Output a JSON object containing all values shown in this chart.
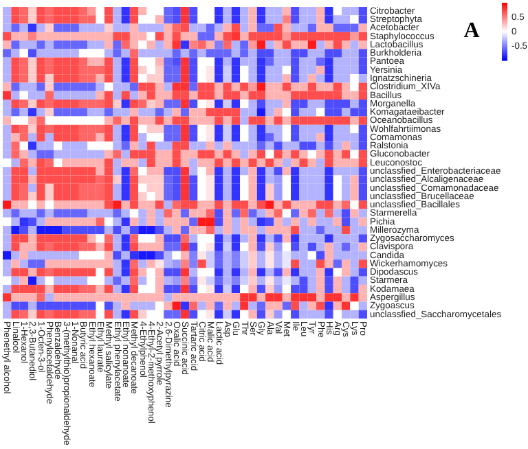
{
  "chart_data": {
    "type": "heatmap",
    "title": "A",
    "categories": [
      "Phenethyl alcohol",
      "Linalool",
      "1-Hexanol",
      "2,3-Butanediol",
      "1-Octen-3-ol",
      "Phenylacetaldehyde",
      "Benzaldehyde",
      "3-(methylthio)propionaldehyde",
      "1-Nonanal",
      "Butyric acid",
      "Ethyl hexanoate",
      "Ethyl laurate",
      "Methyl salicylate",
      "Ethyl phenylacetate",
      "Ethyl nonanoate",
      "Methyl decanoate",
      "4-Ethylphenol",
      "4-Ethyl-2-methoxyphenol",
      "2-Acetyl pyrrole",
      "2,6-Dimethylpyrazine",
      "Oxalic acid",
      "Succinic acid",
      "Tartaric acid",
      "Citric acid",
      "Malic acid",
      "Lactic acid",
      "Asp",
      "Glu",
      "Thr",
      "Ser",
      "Gly",
      "Ala",
      "Val",
      "Met",
      "Ile",
      "Leu",
      "Tyr",
      "Phe",
      "His",
      "Arg",
      "Cys",
      "Lys",
      "Pro"
    ],
    "y_categories": [
      "Citrobacter",
      "Streptophyta",
      "Acetobacter",
      "Staphylococcus",
      "Lactobacillus",
      "Burkholderia",
      "Pantoea",
      "Yersinia",
      "Ignatzschineria",
      "Clostridium_XIVa",
      "Bacillus",
      "Morganella",
      "Komagataeibacter",
      "Oceanobacillus",
      "Wohlfahrtiimonas",
      "Comamonas",
      "Ralstonia",
      "Gluconobacter",
      "Leuconostoc",
      "unclassfied_Enterobacteriaceae",
      "unclassfied_Alcaligenaceae",
      "unclassfied_Comamonadaceae",
      "unclassfied_Brucellaceae",
      "unclassfied_Bacillales",
      "Starmerella",
      "Pichia",
      "Millerozyma",
      "Zygosaccharomyces",
      "Clavispora",
      "Candida",
      "Wickerhamomyces",
      "Dipodascus",
      "Starmera",
      "Kodamaea",
      "Aspergillus",
      "Zygoascus",
      "unclassfied_Saccharomycetales"
    ],
    "cells": [
      [
        -0.3,
        0.7,
        0.6,
        0.2,
        0.7,
        0.6,
        0.7,
        0.7,
        0.7,
        0.6,
        0.4,
        0,
        0.7,
        -0.3,
        -0.8,
        0.7,
        0.3,
        0,
        0,
        -0.6,
        -0.7,
        0.8,
        -0.7,
        0,
        0,
        -0.8,
        -0.3,
        -0.8,
        -0.3,
        0.3,
        -0.8,
        -0.3,
        -0.3,
        0.3,
        -0.7,
        -0.3,
        -0.3,
        0.3,
        -0.8,
        0,
        -0.3,
        -0.3,
        -0.7
      ],
      [
        -0.3,
        0.7,
        0.6,
        0.2,
        0.7,
        0.6,
        0.7,
        0.7,
        0.7,
        0.6,
        0.6,
        0,
        0.7,
        -0.3,
        -0.8,
        0.7,
        0,
        0,
        0.3,
        -0.6,
        -0.7,
        0.8,
        -0.7,
        0,
        0,
        -0.8,
        -0.3,
        -0.8,
        -0.3,
        0.3,
        -0.8,
        -0.3,
        -0.3,
        0.5,
        -0.7,
        -0.3,
        -0.3,
        0.3,
        -0.8,
        -0.3,
        -0.3,
        0,
        -0.7
      ],
      [
        -0.3,
        -0.6,
        -0.3,
        -0.8,
        -0.3,
        0.2,
        -0.6,
        -0.6,
        -0.6,
        -0.3,
        -0.3,
        -0.3,
        0.2,
        -0.3,
        -0.3,
        0.3,
        -0.3,
        -0.3,
        -0.3,
        0.3,
        0.6,
        0.7,
        -0.3,
        -0.3,
        -0.6,
        -0.3,
        0.3,
        0.7,
        -0.3,
        0.3,
        -0.6,
        -0.6,
        0.7,
        0.3,
        -0.3,
        -0.3,
        -0.6,
        0.3,
        0.3,
        -0.6,
        -0.6,
        -0.6,
        0.3
      ],
      [
        0.7,
        0.3,
        0.3,
        0.5,
        0.3,
        0.3,
        0.3,
        0.3,
        0.3,
        0.3,
        0.3,
        0.3,
        0.3,
        0.7,
        0.7,
        0.3,
        0.3,
        0,
        0.7,
        0.3,
        0.7,
        0.3,
        0.3,
        -0.6,
        -0.6,
        0.3,
        0.7,
        0.8,
        0.3,
        0.7,
        0.7,
        0.7,
        0.7,
        0.4,
        0.7,
        0.7,
        0.7,
        0.7,
        0.7,
        0.7,
        0.7,
        0.4,
        0.7
      ],
      [
        0.3,
        -0.6,
        -0.3,
        -0.3,
        -0.6,
        -0.3,
        -0.6,
        -0.6,
        -0.6,
        -0.6,
        -0.3,
        -0.3,
        0.3,
        -0.6,
        0.6,
        0.3,
        0,
        0.3,
        -0.3,
        0.3,
        0.8,
        -0.8,
        0.5,
        0.6,
        0.3,
        -0.5,
        0.6,
        -0.3,
        -0.6,
        0.4,
        0.9,
        -0.3,
        0.3,
        0.7,
        0.3,
        0.3,
        0.9,
        -0.3,
        0.3,
        0.7,
        0.3,
        -0.3,
        0.3
      ],
      [
        -0.6,
        -0.3,
        0,
        -0.7,
        -0.3,
        -0.3,
        -0.3,
        -0.3,
        -0.3,
        0,
        0,
        0,
        -0.3,
        -0.6,
        -0.3,
        0.6,
        -0.3,
        -0.3,
        -0.3,
        -0.3,
        -0.6,
        -0.3,
        -0.6,
        -0.3,
        -0.6,
        -0.6,
        -0.6,
        -0.3,
        -0.6,
        -0.3,
        -0.7,
        -0.7,
        -0.3,
        -0.3,
        -0.7,
        -0.7,
        -0.3,
        -0.3,
        -0.7,
        -0.7,
        -0.3,
        -0.3,
        -0.7
      ],
      [
        -0.3,
        0.7,
        0.6,
        0.2,
        0.7,
        0.6,
        0.7,
        0.7,
        0.7,
        0.6,
        0.3,
        0.3,
        0.7,
        -0.3,
        -0.8,
        0.7,
        0,
        0,
        0.3,
        -0.6,
        -0.7,
        0.8,
        -0.7,
        0,
        0,
        -0.8,
        -0.3,
        -0.8,
        -0.3,
        -0.3,
        -0.8,
        -0.6,
        -0.3,
        -0.3,
        -0.7,
        -0.3,
        -0.3,
        -0.6,
        -0.8,
        -0.3,
        -0.3,
        -0.3,
        -0.7
      ],
      [
        -0.3,
        0.7,
        0.6,
        0.2,
        0.7,
        0.6,
        0.7,
        0.7,
        0.7,
        0.6,
        0.6,
        0.6,
        0.7,
        -0.3,
        -0.8,
        0.7,
        0.2,
        0,
        0.2,
        -0.6,
        -0.6,
        0.8,
        -0.7,
        0,
        0.1,
        -0.8,
        -0.2,
        -0.8,
        0,
        -0.3,
        -0.8,
        -0.3,
        -0.3,
        0,
        -0.7,
        -0.3,
        -0.3,
        0.3,
        -0.8,
        -0.3,
        -0.3,
        -0.3,
        -0.7
      ],
      [
        -0.3,
        0.7,
        0.6,
        0.2,
        0.7,
        0.2,
        0.7,
        0.7,
        0.7,
        0.6,
        0.6,
        0.3,
        0.7,
        -0.3,
        -0.8,
        0.7,
        0,
        0.2,
        0.2,
        -0.6,
        -0.6,
        0.8,
        -0.7,
        0,
        0.1,
        -0.8,
        -0.2,
        -0.8,
        0,
        -0.3,
        -0.8,
        -0.3,
        -0.3,
        0.3,
        -0.7,
        -0.3,
        0.3,
        -0.3,
        -0.8,
        -0.3,
        -0.3,
        0,
        -0.3
      ],
      [
        0.3,
        -0.6,
        -0.3,
        -0.3,
        -0.6,
        0.2,
        -0.6,
        -0.6,
        -0.6,
        -0.6,
        -0.6,
        -0.3,
        0,
        -0.3,
        -0.3,
        -0.6,
        0.7,
        0.7,
        0.3,
        -0.3,
        0.8,
        0.8,
        -0.6,
        0.7,
        0.7,
        0.3,
        0.7,
        0.3,
        0.7,
        0.4,
        0.9,
        0.3,
        0.3,
        0.7,
        0.3,
        0.3,
        0.7,
        0.3,
        0.3,
        0.7,
        0.3,
        0,
        0.7
      ],
      [
        0.8,
        -0.3,
        0,
        -0.3,
        -0.3,
        0.6,
        -0.3,
        -0.3,
        -0.3,
        -0.3,
        -0.3,
        0.3,
        0.7,
        -0.3,
        0.7,
        -0.3,
        0.3,
        0.7,
        0.3,
        0.3,
        0.7,
        0.7,
        0.3,
        0.7,
        0.7,
        0.3,
        0.7,
        0.7,
        0.3,
        0.7,
        0.7,
        0.3,
        0.3,
        0.3,
        0.7,
        0.7,
        0.7,
        0.7,
        0.7,
        0.7,
        0.3,
        0.3,
        0.7
      ],
      [
        -0.3,
        0.7,
        0.6,
        0.2,
        0.7,
        0.6,
        0.7,
        0.7,
        0.7,
        0.6,
        0.6,
        0.6,
        0.7,
        0.2,
        -0.8,
        0.7,
        0.6,
        0.2,
        0.3,
        -0.6,
        -0.6,
        0.8,
        -0.7,
        0,
        0.1,
        -0.8,
        -0.2,
        -0.8,
        0,
        -0.3,
        -0.7,
        -0.3,
        -0.3,
        0.3,
        -0.7,
        -0.7,
        -0.3,
        -0.3,
        -0.7,
        -0.7,
        -0.7,
        -0.3,
        -0.7
      ],
      [
        -0.3,
        -0.6,
        -0.3,
        -0.8,
        -0.3,
        0.2,
        -0.6,
        -0.6,
        -0.6,
        -0.6,
        -0.3,
        -0.3,
        -0.6,
        -0.3,
        -0.3,
        0.3,
        -0.3,
        -0.3,
        -0.6,
        -0.3,
        0.3,
        -0.6,
        0.3,
        0.3,
        0.7,
        0.7,
        0.7,
        0.7,
        -0.3,
        -0.3,
        -0.9,
        -0.3,
        0.3,
        0,
        -0.7,
        -0.3,
        -0.3,
        0,
        -0.7,
        -0.7,
        -0.3,
        -0.7,
        -0.7
      ],
      [
        0.3,
        0,
        0,
        0.3,
        0.6,
        0,
        0,
        0,
        0,
        0,
        0,
        0,
        0.3,
        0.6,
        0.3,
        0.7,
        0.3,
        0.3,
        0.7,
        0.3,
        0.7,
        0.7,
        0.3,
        0.3,
        0.3,
        0.7,
        0.3,
        0.7,
        -0.3,
        0.7,
        0.7,
        0.3,
        0.7,
        0.3,
        0.7,
        0.7,
        0.7,
        0.7,
        0.7,
        0.7,
        0.7,
        0.3,
        0.7
      ],
      [
        -0.3,
        0.7,
        0.6,
        0.2,
        0.7,
        0.6,
        0.7,
        0.7,
        0.7,
        0.6,
        0.6,
        0.6,
        0.7,
        -0.3,
        -0.8,
        0.7,
        0,
        0.2,
        0.2,
        -0.6,
        -0.6,
        0.8,
        -0.7,
        0,
        0.1,
        -0.8,
        -0.2,
        -0.8,
        0,
        -0.3,
        -0.8,
        -0.3,
        -0.3,
        0,
        -0.7,
        -0.3,
        -0.3,
        -0.3,
        -0.8,
        -0.3,
        -0.3,
        0,
        -0.7
      ],
      [
        -0.3,
        0.3,
        0.6,
        -0.3,
        0.7,
        -0.3,
        0.7,
        0.7,
        0.7,
        0.6,
        0.6,
        0.3,
        0.7,
        -0.3,
        -0.8,
        0.7,
        -0.3,
        0,
        0,
        -0.6,
        -0.6,
        0.8,
        -0.7,
        0,
        0.1,
        -0.8,
        -0.2,
        -0.8,
        0,
        -0.3,
        -0.8,
        -0.6,
        -0.3,
        0,
        -0.7,
        -0.3,
        -0.3,
        0.3,
        -0.8,
        -0.3,
        -0.3,
        -0.3,
        -0.7
      ],
      [
        -0.3,
        0.6,
        0,
        -0.8,
        -0.3,
        -0.3,
        0,
        -0.3,
        -0.3,
        -0.3,
        0,
        0,
        0,
        -0.3,
        -0.6,
        0.3,
        -0.3,
        0.7,
        -0.3,
        -0.3,
        0.7,
        0.7,
        -0.3,
        -0.3,
        0.3,
        -0.3,
        0.3,
        -0.3,
        -0.3,
        -0.3,
        -0.6,
        -0.3,
        -0.7,
        -0.3,
        -0.3,
        -0.7,
        -0.7,
        -0.3,
        -0.7,
        -0.3,
        0.3,
        -0.3,
        -0.7
      ],
      [
        -0.3,
        0.6,
        0.3,
        -0.3,
        -0.6,
        -0.6,
        -0.3,
        -0.3,
        -0.3,
        -0.3,
        -0.3,
        -0.3,
        0.3,
        0.6,
        -0.3,
        0.7,
        0.7,
        0.7,
        0.3,
        0.3,
        0.7,
        0.3,
        0.3,
        0.7,
        0.7,
        0.3,
        0.7,
        0.3,
        -0.3,
        0.3,
        0.7,
        0,
        0.7,
        0.3,
        0.7,
        0.3,
        0,
        0.3,
        0.7,
        0.3,
        0.7,
        0,
        0.7
      ],
      [
        0,
        -0.3,
        0.6,
        0.3,
        0.7,
        0.6,
        0,
        0.3,
        0.3,
        0.3,
        0.3,
        0.3,
        0.7,
        -0.3,
        0.3,
        0.3,
        -0.3,
        0.7,
        0.3,
        0.3,
        0.7,
        0.3,
        -0.3,
        0.3,
        0.3,
        0.7,
        0.3,
        0.7,
        0.3,
        0.7,
        0.3,
        0.7,
        0.3,
        -0.3,
        0.3,
        0.7,
        0.3,
        -0.3,
        0.7,
        0.3,
        0.3,
        0.3,
        0.7
      ],
      [
        -0.3,
        0.7,
        0.7,
        -0.3,
        0.7,
        0.7,
        0.7,
        0.7,
        0.7,
        0.7,
        0.7,
        0.3,
        0.7,
        -0.3,
        -0.8,
        0.6,
        0,
        0.3,
        0.3,
        -0.7,
        -0.7,
        0.8,
        -0.3,
        0,
        0.3,
        -0.8,
        -0.3,
        -0.8,
        -0.3,
        0.3,
        -0.8,
        -0.3,
        -0.7,
        0.3,
        -0.8,
        -0.3,
        -0.3,
        -0.3,
        -0.8,
        -0.3,
        -0.3,
        -0.3,
        -0.7
      ],
      [
        -0.3,
        0.7,
        0.7,
        0.3,
        0.7,
        0.7,
        0.7,
        0.7,
        0.7,
        0.7,
        0.7,
        0.6,
        0.7,
        0.2,
        -0.8,
        0.7,
        0.2,
        0.2,
        0.2,
        -0.6,
        -0.7,
        0.8,
        -0.7,
        0,
        0.1,
        -0.8,
        -0.3,
        -0.8,
        0,
        0.3,
        -0.8,
        -0.3,
        -0.4,
        0,
        -0.8,
        -0.3,
        -0.3,
        -0.3,
        -0.8,
        0,
        -0.3,
        0.3,
        -0.7
      ],
      [
        -0.3,
        0.7,
        0.6,
        -0.3,
        0.7,
        0.2,
        0.7,
        0.7,
        0.7,
        0.6,
        0.6,
        0.6,
        0.7,
        -0.3,
        -0.8,
        0.7,
        0,
        0.2,
        0.2,
        -0.6,
        -0.7,
        0.8,
        -0.7,
        0,
        0.1,
        -0.8,
        -0.3,
        -0.8,
        0,
        0.3,
        -0.8,
        0.2,
        -0.4,
        0,
        -0.8,
        -0.3,
        -0.3,
        -0.3,
        -0.8,
        0,
        -0.3,
        0.3,
        -0.7
      ],
      [
        -0.3,
        0.7,
        0.6,
        0.2,
        0.7,
        0.2,
        0.7,
        0.7,
        0.7,
        0.6,
        0.6,
        0.6,
        0.7,
        -0.3,
        -0.8,
        0.7,
        0.2,
        0,
        0.2,
        -0.6,
        -0.7,
        0.8,
        -0.7,
        0,
        0.1,
        -0.8,
        -0.3,
        -0.8,
        0,
        0.3,
        -0.8,
        0.2,
        -0.4,
        0,
        -0.8,
        -0.3,
        -0.3,
        -0.3,
        -0.8,
        0,
        -0.3,
        0.3,
        -0.7
      ],
      [
        0.9,
        0.3,
        0.3,
        0,
        0.3,
        0,
        0.3,
        0.3,
        0.3,
        0.3,
        0.3,
        0.3,
        0.7,
        0.9,
        0.3,
        0.7,
        0.3,
        0.3,
        0.7,
        -0.3,
        0.6,
        0.7,
        0.7,
        0.3,
        0.3,
        0.7,
        0.3,
        0.7,
        0.7,
        0.3,
        0.7,
        0.9,
        0.3,
        0.7,
        0.3,
        0.3,
        0.3,
        0.7,
        0.7,
        0.3,
        0.6,
        0,
        0.7
      ],
      [
        -0.3,
        -0.6,
        -0.3,
        -0.3,
        -0.6,
        -0.3,
        -0.6,
        -0.6,
        -0.6,
        -0.6,
        -0.3,
        -0.3,
        -0.3,
        -0.6,
        -0.3,
        0,
        -0.3,
        0.3,
        -0.3,
        0.6,
        0.3,
        -0.6,
        0.3,
        0.3,
        0.6,
        -0.7,
        0.3,
        -0.6,
        0.6,
        -0.6,
        -0.3,
        0.3,
        0.6,
        0,
        -0.6,
        0.3,
        0.6,
        -0.3,
        0.6,
        -0.3,
        -0.7,
        0.3,
        -0.3
      ],
      [
        0,
        -0.3,
        -0.8,
        -0.7,
        -0.3,
        0.3,
        0.3,
        0.3,
        0.3,
        0.3,
        0.3,
        0.6,
        0,
        -0.3,
        -0.8,
        0.3,
        -0.3,
        0.3,
        -0.3,
        0.3,
        0.3,
        0.3,
        -0.6,
        0.9,
        0.9,
        -0.7,
        0.3,
        -0.3,
        0.3,
        -0.3,
        -0.8,
        -0.7,
        0.3,
        -0.3,
        0.3,
        -0.3,
        0.3,
        -0.3,
        -0.3,
        0.3,
        -0.7,
        -0.3,
        0.3
      ],
      [
        -0.3,
        -0.9,
        -0.7,
        -0.3,
        -0.9,
        -0.9,
        -0.9,
        -0.7,
        -0.7,
        -0.7,
        -0.7,
        -0.7,
        -0.3,
        -0.7,
        -0.3,
        -0.7,
        -0.9,
        -0.9,
        -0.7,
        -0.3,
        0.3,
        -0.6,
        0.3,
        0.3,
        0.6,
        -0.3,
        0.3,
        -0.3,
        0.3,
        0.3,
        -0.3,
        0.3,
        0.3,
        0.3,
        0.7,
        -0.3,
        -0.3,
        -0.6,
        -0.3,
        -0.3,
        0.7,
        -0.3,
        -0.3
      ],
      [
        -0.3,
        0.7,
        0.7,
        0.3,
        0.7,
        0.7,
        0.7,
        0.7,
        0.7,
        0.7,
        0.3,
        0,
        0.6,
        -0.3,
        -0.8,
        0.6,
        0,
        0,
        0.3,
        -0.7,
        -0.7,
        0.6,
        -0.3,
        0,
        0,
        -0.8,
        -0.3,
        -0.8,
        -0.3,
        0.3,
        -0.8,
        -0.3,
        -0.7,
        0.3,
        -0.8,
        -0.3,
        -0.3,
        -0.3,
        -0.8,
        -0.3,
        -0.3,
        -0.3,
        -0.7
      ],
      [
        -0.3,
        0.7,
        0.3,
        0.3,
        0.7,
        0.6,
        0.7,
        0.7,
        0.7,
        0.6,
        0.6,
        0.3,
        0.7,
        -0.3,
        -0.8,
        0.7,
        0.3,
        0.3,
        0.3,
        -0.6,
        -0.6,
        0.8,
        -0.7,
        0,
        0.1,
        -0.8,
        -0.2,
        -0.8,
        0,
        0.3,
        -0.7,
        0.2,
        -0.4,
        0,
        -0.7,
        -0.3,
        -0.7,
        -0.3,
        0.3,
        -0.3,
        -0.6,
        -0.3,
        0.3
      ],
      [
        -0.9,
        -0.3,
        0.3,
        -0.3,
        -0.3,
        -0.3,
        -0.3,
        -0.3,
        -0.3,
        0,
        0,
        0,
        0.3,
        -0.7,
        -0.3,
        -0.8,
        -0.9,
        -0.9,
        -0.7,
        -0.3,
        0,
        0.3,
        -0.5,
        0.1,
        -0.2,
        -0.6,
        -0.3,
        -0.5,
        -0.2,
        0.2,
        -0.3,
        0.1,
        -0.3,
        -0.1,
        -0.3,
        -0.3,
        0,
        -0.7,
        0.3,
        -0.3,
        -0.3,
        -0.3,
        -0.3
      ],
      [
        -0.3,
        0.3,
        -0.3,
        -0.6,
        -0.6,
        0.3,
        0.3,
        0.3,
        0.3,
        0.3,
        0.3,
        0.3,
        0.3,
        -0.3,
        -0.8,
        0.6,
        -0.3,
        0.3,
        0.1,
        -0.3,
        -0.4,
        0.5,
        -0.5,
        0.7,
        -0.2,
        -0.6,
        -0.3,
        -0.5,
        -0.2,
        0.2,
        -0.3,
        0.1,
        -0.3,
        -0.1,
        0.7,
        -0.3,
        -0.3,
        0.7,
        0.3,
        -0.6,
        0.3,
        -0.3,
        0.7
      ],
      [
        -0.3,
        0.7,
        0.7,
        0.3,
        0.7,
        0.6,
        0.7,
        0.7,
        0.7,
        0.7,
        0.7,
        0,
        0.7,
        -0.3,
        -0.8,
        0.7,
        0.3,
        0,
        0.3,
        -0.7,
        -0.7,
        0.8,
        -0.3,
        0,
        0,
        -0.8,
        -0.3,
        -0.8,
        -0.3,
        0.3,
        -0.8,
        -0.3,
        -0.7,
        0.3,
        -0.8,
        -0.3,
        -0.3,
        0.3,
        -0.8,
        0,
        0.3,
        -0.3,
        -0.7
      ],
      [
        0,
        -0.3,
        0.3,
        -0.9,
        -0.3,
        0,
        -0.3,
        -0.3,
        -0.3,
        -0.3,
        0,
        0,
        -0.3,
        -0.6,
        -0.3,
        0.6,
        -0.3,
        0,
        0.3,
        -0.3,
        -0.4,
        0.5,
        -0.5,
        0.1,
        -0.2,
        -0.6,
        -0.3,
        -0.5,
        -0.2,
        0.2,
        -0.3,
        0.1,
        -0.3,
        -0.1,
        -0.3,
        -0.7,
        -0.3,
        0.3,
        -0.7,
        0.3,
        -0.3,
        -0.7,
        -0.3
      ],
      [
        -0.3,
        0.7,
        0.7,
        0.7,
        0.7,
        0.3,
        0.7,
        0.7,
        0.7,
        0.6,
        0.6,
        0.3,
        0.7,
        -0.3,
        -0.8,
        0.7,
        0,
        0,
        0.3,
        -0.7,
        -0.7,
        0.8,
        -0.7,
        0,
        0.1,
        -0.8,
        -0.2,
        -0.8,
        0,
        0.3,
        -0.7,
        0.2,
        -0.4,
        0,
        -0.7,
        -0.7,
        -0.3,
        0.3,
        -0.7,
        0.3,
        -0.3,
        -0.7,
        0.3
      ],
      [
        0.8,
        0.3,
        0.3,
        0.3,
        0.6,
        -0.3,
        0.3,
        0.3,
        0.3,
        0.3,
        0.3,
        0.3,
        0.3,
        0.3,
        0.3,
        0.3,
        0.3,
        0.3,
        0.3,
        -0.3,
        0.3,
        0.3,
        0.3,
        0.3,
        0.3,
        0.3,
        0.3,
        0.3,
        0.8,
        0.8,
        0.3,
        0.8,
        0.8,
        0.3,
        0.8,
        0.8,
        0.8,
        0.3,
        0.8,
        0.8,
        0.3,
        0.8,
        0.3
      ],
      [
        -0.3,
        -0.7,
        -0.7,
        -0.3,
        -0.7,
        -0.7,
        -0.7,
        -0.7,
        -0.7,
        -0.7,
        -0.7,
        0,
        -0.7,
        -0.3,
        0.3,
        -0.3,
        -0.3,
        -0.3,
        0,
        0.3,
        0.9,
        -0.8,
        0.6,
        -0.3,
        0.3,
        -0.6,
        0.3,
        -0.3,
        0.8,
        -0.3,
        -0.6,
        0.3,
        0.3,
        -0.6,
        0.7,
        -0.3,
        0.3,
        0.7,
        -0.8,
        0.3,
        0.8,
        0,
        -0.3
      ],
      [
        -0.3,
        0.7,
        0.6,
        0.2,
        0.7,
        0.6,
        0.7,
        0.7,
        0.7,
        0.6,
        0.6,
        0,
        0.7,
        -0.3,
        -0.8,
        0.7,
        0.2,
        0,
        0,
        -0.6,
        -0.6,
        0.8,
        -0.7,
        0,
        0.1,
        -0.8,
        -0.2,
        -0.8,
        0,
        0.3,
        -0.7,
        0.2,
        -0.4,
        0,
        -0.7,
        -0.3,
        -0.3,
        -0.3,
        -0.7,
        0,
        -0.3,
        -0.3,
        -0.7
      ]
    ],
    "clim": [
      -1,
      1
    ],
    "cticks": [
      0.5,
      0,
      -0.5
    ]
  }
}
